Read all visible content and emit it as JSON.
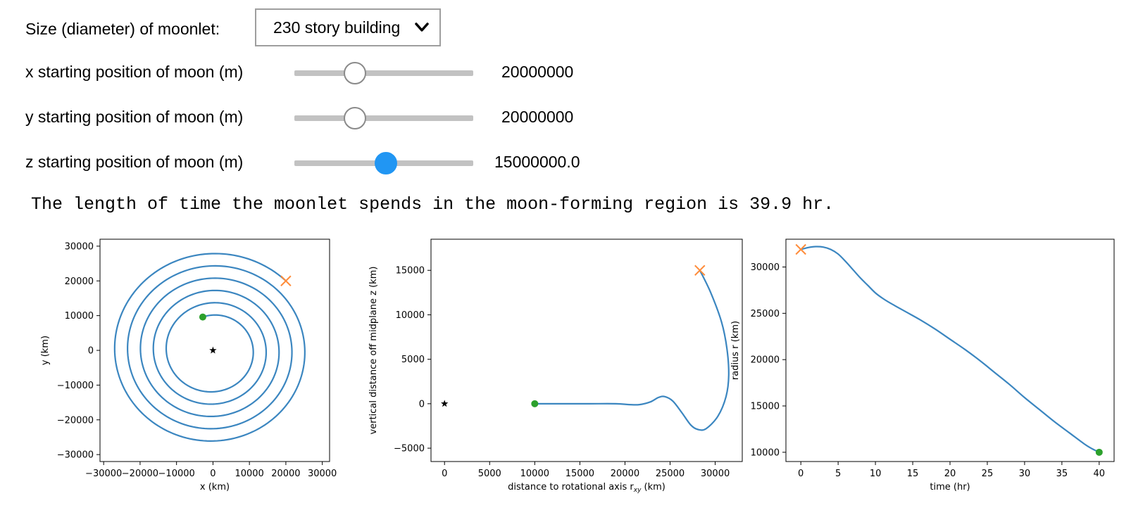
{
  "controls": {
    "size_label": "Size (diameter) of moonlet:",
    "size_selected": "230 story building",
    "sliders": [
      {
        "label": "x starting position of moon (m)",
        "value_text": "20000000",
        "fraction": 0.34,
        "thumb": "white"
      },
      {
        "label": "y starting position of moon (m)",
        "value_text": "20000000",
        "fraction": 0.34,
        "thumb": "white"
      },
      {
        "label": "z starting position of moon (m)",
        "value_text": "15000000.0",
        "fraction": 0.51,
        "thumb": "blue"
      }
    ]
  },
  "output_text": "The length of time the moonlet spends in the moon-forming region is 39.9 hr.",
  "colors": {
    "line": "#3b86c0",
    "start_marker": "#ff8c3a",
    "end_marker": "#2ca02c",
    "slider_active": "#2196f3"
  },
  "chart_data": [
    {
      "type": "line",
      "xlabel": "x (km)",
      "ylabel": "y (km)",
      "xlim": [
        -31000,
        32000
      ],
      "ylim": [
        -32000,
        32000
      ],
      "xticks": [
        -30000,
        -20000,
        -10000,
        0,
        10000,
        20000,
        30000
      ],
      "yticks": [
        -30000,
        -20000,
        -10000,
        0,
        10000,
        20000,
        30000
      ],
      "xtick_labels": [
        "−30000",
        "−20000",
        "−10000",
        "0",
        "10000",
        "20000",
        "30000"
      ],
      "ytick_labels": [
        "−30000",
        "−20000",
        "−10000",
        "0",
        "10000",
        "20000",
        "30000"
      ],
      "series": [
        {
          "spiral": {
            "r_start": 28300,
            "r_end": 10000,
            "turns": 5,
            "start_angle_deg": 45,
            "end_angle_deg": 107
          }
        }
      ],
      "start_marker": {
        "x": 20000,
        "y": 20000,
        "symbol": "x"
      },
      "end_marker": {
        "x": -2800,
        "y": 9600,
        "symbol": "o"
      },
      "center_marker": {
        "x": 0,
        "y": 0,
        "symbol": "*"
      }
    },
    {
      "type": "line",
      "xlabel": "distance to rotational axis r",
      "xlabel_sub": "xy",
      "xlabel_unit": " (km)",
      "ylabel": "vertical distance off midplane z (km)",
      "xlim": [
        -1500,
        33000
      ],
      "ylim": [
        -6500,
        18500
      ],
      "xticks": [
        0,
        5000,
        10000,
        15000,
        20000,
        25000,
        30000
      ],
      "yticks": [
        -5000,
        0,
        5000,
        10000,
        15000
      ],
      "xtick_labels": [
        "0",
        "5000",
        "10000",
        "15000",
        "20000",
        "25000",
        "30000"
      ],
      "ytick_labels": [
        "−5000",
        "0",
        "5000",
        "10000",
        "15000"
      ],
      "series": [
        {
          "x": [
            28300,
            29500,
            30700,
            31300,
            31500,
            31200,
            30300,
            29000,
            28100,
            27300,
            26300,
            25300,
            24400,
            23700,
            22800,
            21600,
            20500,
            19000,
            16000,
            13000,
            10000
          ],
          "y": [
            15000,
            12500,
            9200,
            6200,
            3200,
            800,
            -1400,
            -2800,
            -2900,
            -2400,
            -1000,
            300,
            800,
            700,
            200,
            -100,
            -100,
            0,
            0,
            0,
            0
          ]
        }
      ],
      "start_marker": {
        "x": 28300,
        "y": 15000,
        "symbol": "x"
      },
      "end_marker": {
        "x": 10000,
        "y": 0,
        "symbol": "o"
      },
      "center_marker": {
        "x": 0,
        "y": 0,
        "symbol": "*"
      }
    },
    {
      "type": "line",
      "xlabel": "time (hr)",
      "ylabel": "radius r (km)",
      "xlim": [
        -2,
        42
      ],
      "ylim": [
        9000,
        33000
      ],
      "xticks": [
        0,
        5,
        10,
        15,
        20,
        25,
        30,
        35,
        40
      ],
      "yticks": [
        10000,
        15000,
        20000,
        25000,
        30000
      ],
      "xtick_labels": [
        "0",
        "5",
        "10",
        "15",
        "20",
        "25",
        "30",
        "35",
        "40"
      ],
      "ytick_labels": [
        "10000",
        "15000",
        "20000",
        "25000",
        "30000"
      ],
      "series": [
        {
          "x": [
            0,
            1,
            2,
            3,
            4,
            5,
            6,
            7,
            8,
            9,
            10,
            11,
            12,
            14,
            16,
            18,
            20,
            22,
            24,
            26,
            28,
            30,
            32,
            34,
            36,
            38,
            39,
            40
          ],
          "y": [
            31900,
            32100,
            32200,
            32150,
            31900,
            31400,
            30600,
            29700,
            28800,
            28000,
            27200,
            26600,
            26100,
            25200,
            24300,
            23300,
            22200,
            21100,
            19900,
            18600,
            17300,
            15900,
            14600,
            13300,
            12100,
            10900,
            10400,
            10000
          ]
        }
      ],
      "start_marker": {
        "x": 0,
        "y": 31900,
        "symbol": "x"
      },
      "end_marker": {
        "x": 40,
        "y": 10000,
        "symbol": "o"
      }
    }
  ]
}
